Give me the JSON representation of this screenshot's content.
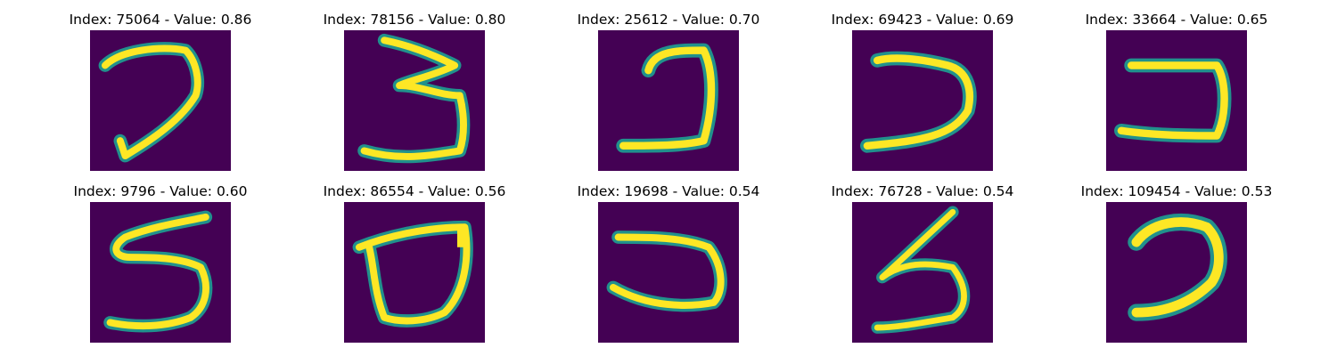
{
  "colors": {
    "background": "#440154",
    "stroke_mid": "#21918c",
    "stroke_core": "#fde725",
    "page": "#ffffff"
  },
  "panels": [
    {
      "title": "Index: 75064 - Value: 0.86",
      "icon": "digit-stroke-icon"
    },
    {
      "title": "Index: 78156 - Value: 0.80",
      "icon": "digit-stroke-icon"
    },
    {
      "title": "Index: 25612 - Value: 0.70",
      "icon": "digit-stroke-icon"
    },
    {
      "title": "Index: 69423 - Value: 0.69",
      "icon": "digit-stroke-icon"
    },
    {
      "title": "Index: 33664 - Value: 0.65",
      "icon": "digit-stroke-icon"
    },
    {
      "title": "Index: 9796 - Value: 0.60",
      "icon": "digit-stroke-icon"
    },
    {
      "title": "Index: 86554 - Value: 0.56",
      "icon": "digit-stroke-icon"
    },
    {
      "title": "Index: 19698 - Value: 0.54",
      "icon": "digit-stroke-icon"
    },
    {
      "title": "Index: 76728 - Value: 0.54",
      "icon": "digit-stroke-icon"
    },
    {
      "title": "Index: 109454 - Value: 0.53",
      "icon": "digit-stroke-icon"
    }
  ]
}
